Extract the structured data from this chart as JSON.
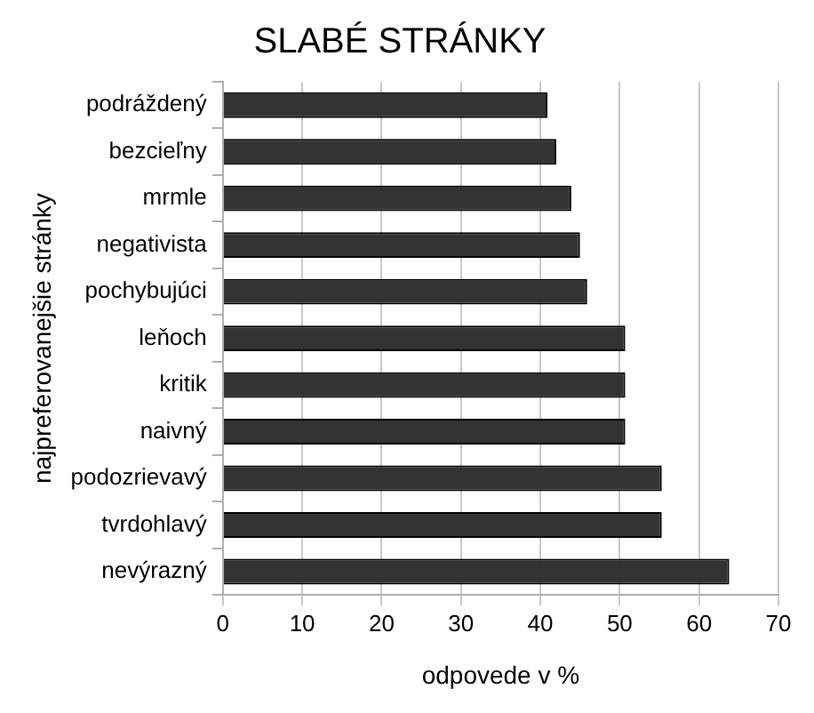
{
  "chart_data": {
    "type": "bar",
    "orientation": "horizontal",
    "title": "SLABÉ STRÁNKY",
    "xlabel": "odpovede v %",
    "ylabel": "najpreferovanejšie stránky",
    "categories": [
      "podráždený",
      "bezcieľny",
      "mrmle",
      "negativista",
      "pochybujúci",
      "leňoch",
      "kritik",
      "naivný",
      "podozrievavý",
      "tvrdohlavý",
      "nevýrazný"
    ],
    "values": [
      40.9,
      42,
      43.9,
      45,
      45.9,
      50.7,
      50.7,
      50.7,
      55.3,
      55.3,
      63.8
    ],
    "color": "#333333",
    "xlim": [
      0,
      70
    ],
    "xticks": [
      0,
      10,
      20,
      30,
      40,
      50,
      60,
      70
    ],
    "grid": "x",
    "legend": false
  }
}
